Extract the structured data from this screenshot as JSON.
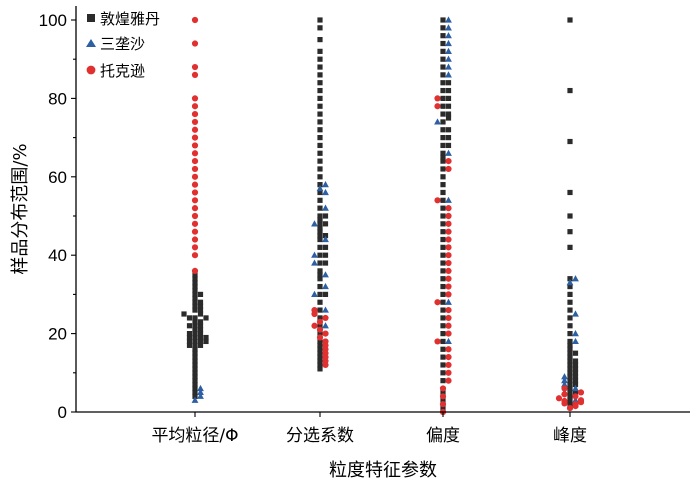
{
  "chart_data": {
    "type": "scatter",
    "subtype": "beeswarm",
    "title": "",
    "xlabel": "粒度特征参数",
    "ylabel": "样品分布范围/%",
    "ylim": [
      0,
      100
    ],
    "yticks": [
      0,
      20,
      40,
      60,
      80,
      100
    ],
    "categories": [
      "平均粒径/Φ",
      "分选系数",
      "偏度",
      "峰度"
    ],
    "legend": {
      "position": "top-left"
    },
    "series": [
      {
        "name": "敦煌雅丹",
        "marker": "square",
        "color": "#2b2b2b",
        "values": [
          [
            18,
            19,
            19,
            20,
            21,
            22,
            23,
            24,
            25,
            26,
            27,
            28,
            29,
            30,
            31,
            32,
            33,
            34,
            35,
            4,
            5,
            6,
            7,
            8,
            9,
            10,
            11,
            12,
            13,
            14,
            15,
            16,
            17,
            17,
            17,
            18,
            18,
            18,
            19,
            19,
            20,
            20,
            21,
            22,
            22,
            23,
            24,
            24,
            25,
            26,
            27,
            28,
            30
          ],
          [
            11,
            12,
            13,
            14,
            15,
            16,
            17,
            18,
            20,
            22,
            24,
            26,
            28,
            30,
            32,
            34,
            36,
            38,
            40,
            42,
            44,
            45,
            46,
            47,
            48,
            49,
            50,
            52,
            54,
            56,
            58,
            60,
            62,
            64,
            66,
            68,
            70,
            72,
            74,
            76,
            78,
            80,
            82,
            84,
            86,
            88,
            90,
            92,
            95,
            98,
            100,
            30,
            35,
            40,
            45,
            48,
            50,
            38,
            42
          ],
          [
            1,
            3,
            5,
            8,
            10,
            12,
            14,
            16,
            18,
            20,
            22,
            24,
            26,
            28,
            30,
            32,
            34,
            36,
            38,
            40,
            42,
            44,
            46,
            48,
            50,
            52,
            54,
            56,
            58,
            60,
            62,
            64,
            66,
            68,
            70,
            72,
            74,
            76,
            78,
            80,
            82,
            84,
            86,
            88,
            90,
            92,
            94,
            96,
            98,
            100,
            65,
            70,
            75,
            78,
            80,
            68,
            72,
            76,
            82,
            84
          ],
          [
            2,
            3,
            4,
            5,
            6,
            7,
            8,
            9,
            10,
            11,
            12,
            13,
            14,
            15,
            16,
            17,
            18,
            20,
            22,
            24,
            26,
            28,
            30,
            32,
            34,
            42,
            46,
            50,
            56,
            69,
            82,
            100,
            5,
            7,
            9,
            11,
            13,
            15,
            8,
            10,
            12
          ]
        ]
      },
      {
        "name": "三垄沙",
        "marker": "triangle",
        "color": "#2d5fa3",
        "values": [
          [
            3,
            4,
            5,
            6
          ],
          [
            22,
            30,
            35,
            40,
            44,
            48,
            52,
            56,
            57,
            58,
            26,
            32,
            38
          ],
          [
            86,
            88,
            90,
            92,
            94,
            96,
            98,
            100,
            54,
            28,
            18,
            74,
            66
          ],
          [
            3,
            5,
            6,
            7,
            8,
            9,
            34,
            33,
            25,
            20,
            18
          ]
        ]
      },
      {
        "name": "托克逊",
        "marker": "circle",
        "color": "#e03030",
        "values": [
          [
            36,
            40,
            42,
            44,
            46,
            48,
            50,
            52,
            54,
            56,
            58,
            60,
            62,
            64,
            66,
            68,
            70,
            72,
            74,
            76,
            78,
            80,
            86,
            88,
            94,
            100
          ],
          [
            12,
            13,
            14,
            15,
            16,
            17,
            18,
            19,
            20,
            21,
            22,
            23,
            24,
            25,
            26
          ],
          [
            0,
            2,
            4,
            6,
            8,
            10,
            12,
            14,
            16,
            18,
            20,
            22,
            24,
            26,
            28,
            30,
            32,
            34,
            36,
            38,
            40,
            42,
            44,
            46,
            48,
            50,
            52,
            54,
            62,
            64,
            78,
            80
          ],
          [
            1,
            1.5,
            2,
            2.2,
            2.5,
            2.8,
            3,
            3.5,
            4,
            4.5,
            5,
            6
          ]
        ]
      }
    ]
  },
  "colors": {
    "dunhuang": "#2b2b2b",
    "sanlong": "#2d5fa3",
    "tuokexun": "#e03030"
  }
}
